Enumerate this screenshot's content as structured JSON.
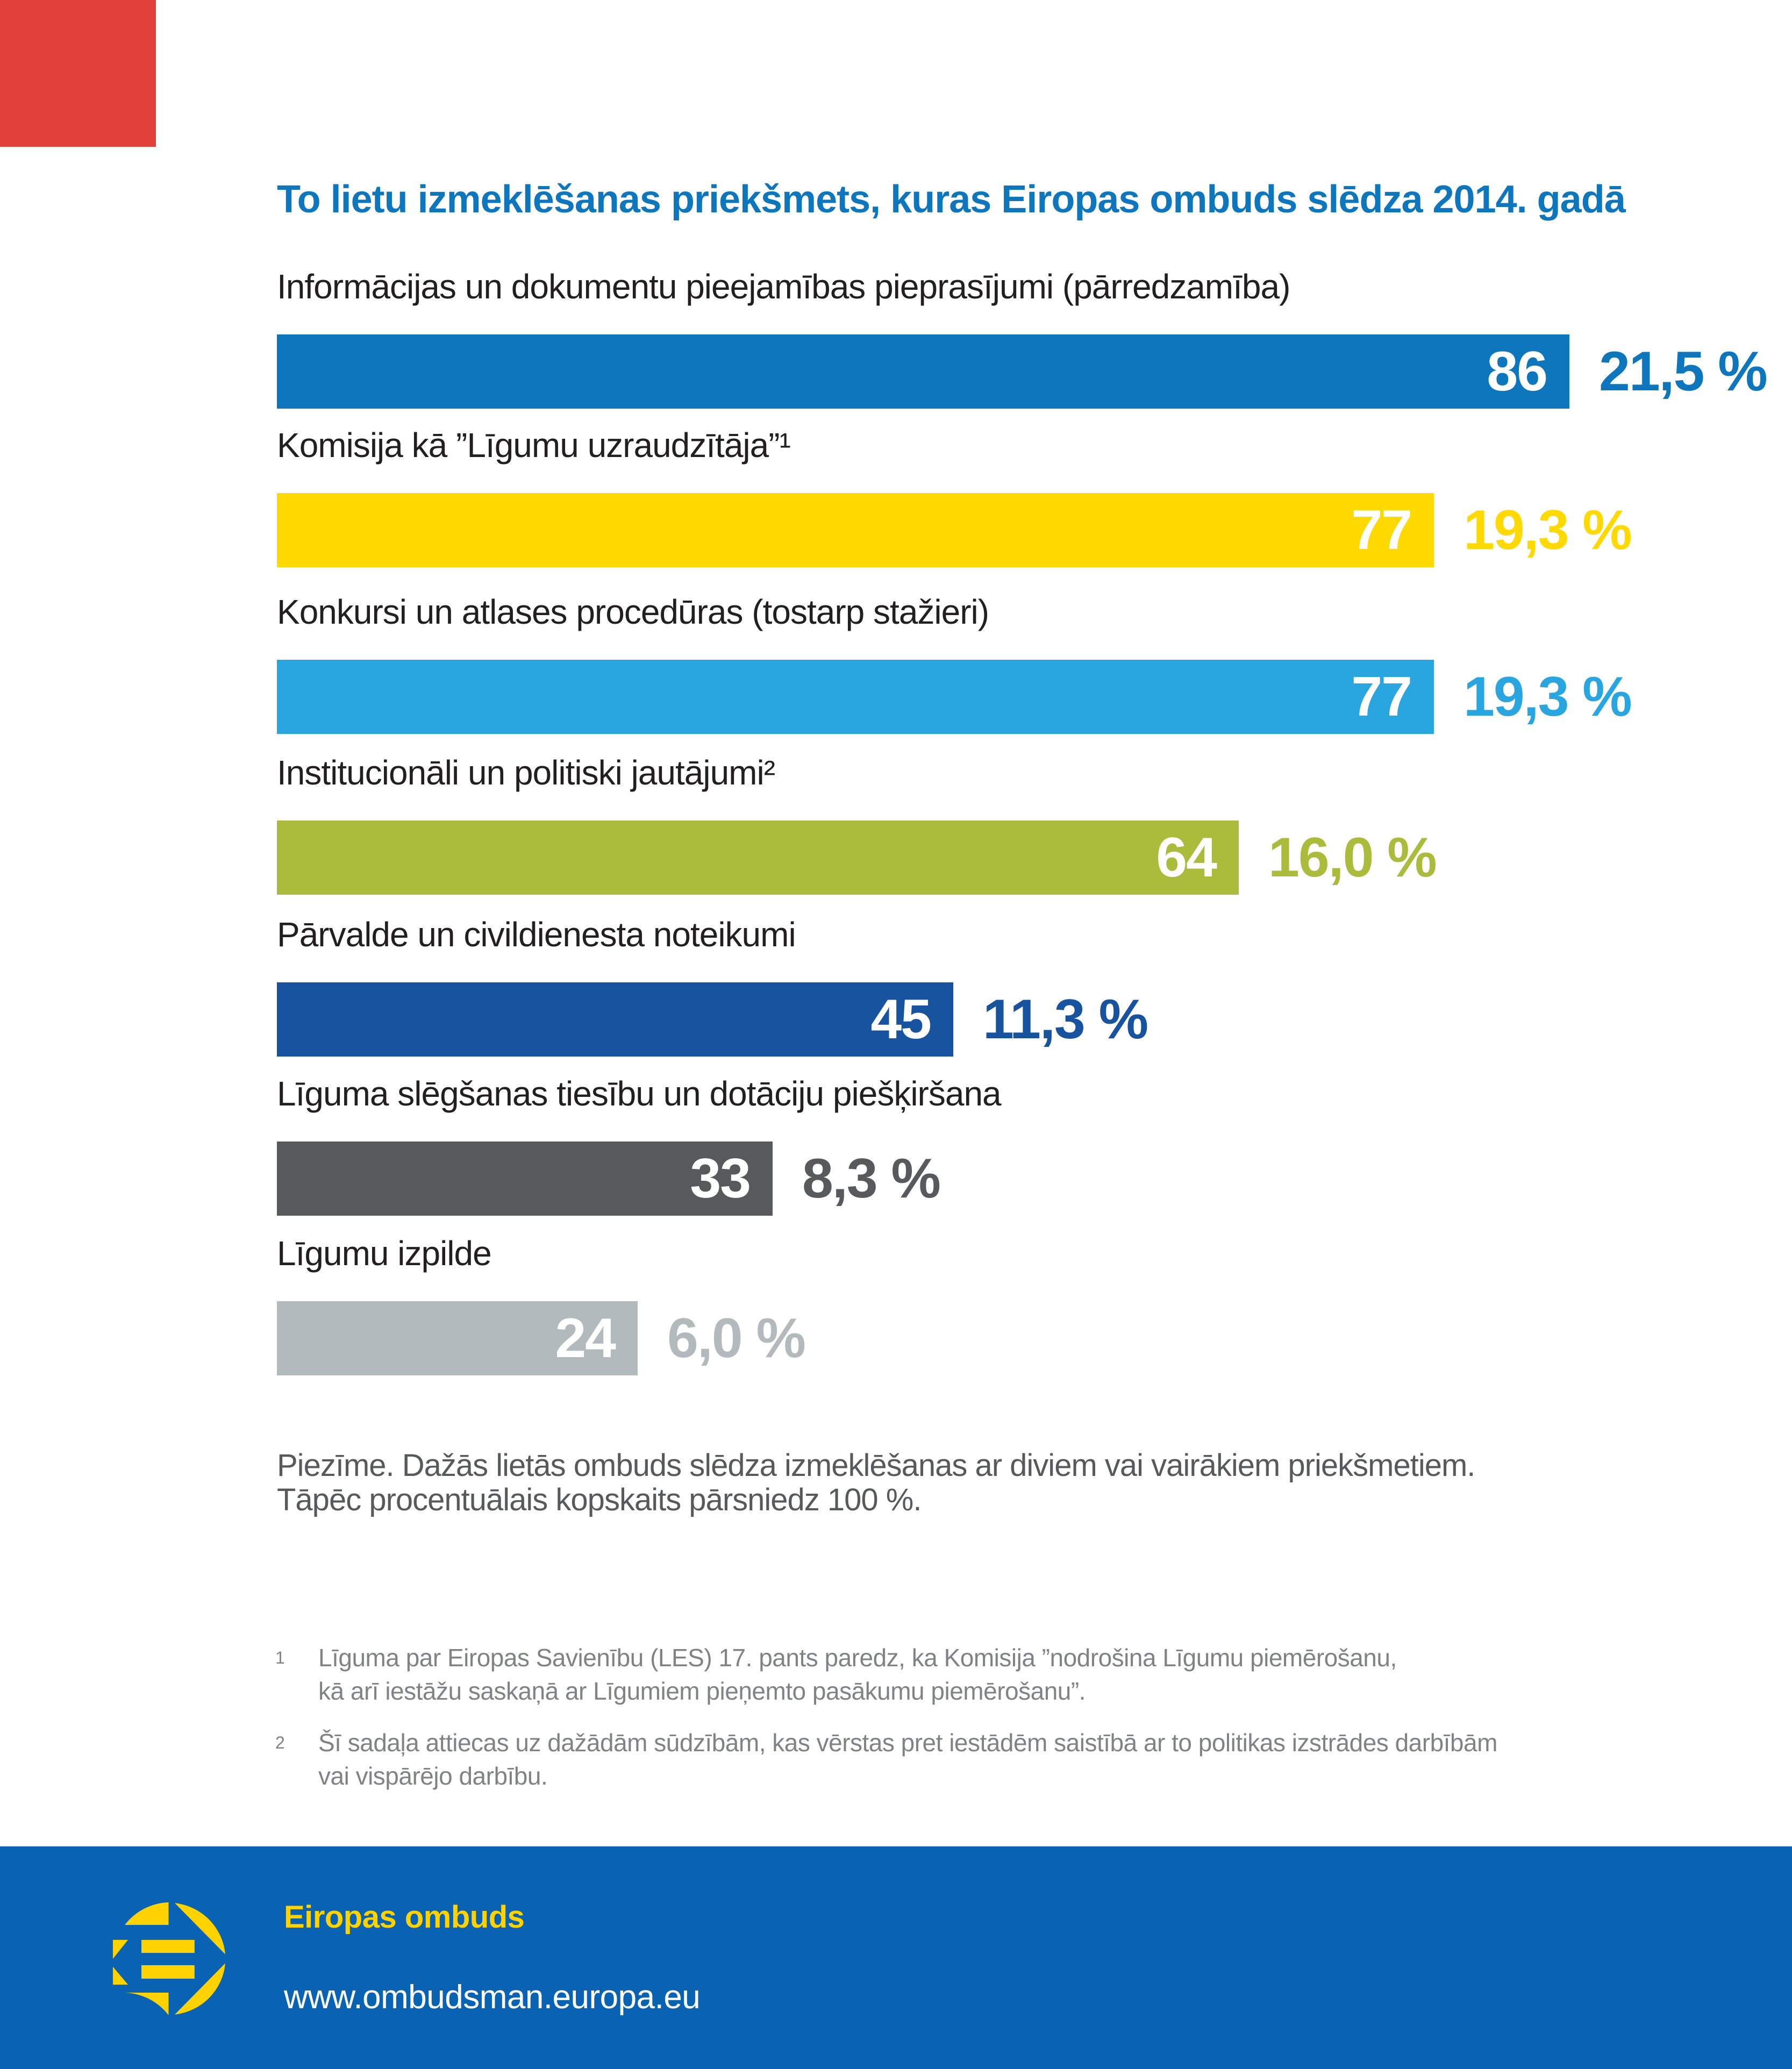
{
  "page": {
    "background": "#ffffff",
    "corner_tab_color": "#e2403b"
  },
  "chart_data": {
    "type": "bar",
    "orientation": "horizontal",
    "title": "To lietu izmeklēšanas priekšmets, kuras Eiropas ombuds slēdza 2014. gadā",
    "title_color": "#0e76bc",
    "categories": [
      "Informācijas un dokumentu pieejamības pieprasījumi (pārredzamība)",
      "Komisija kā ”Līgumu uzraudzītāja”¹",
      "Konkursi un atlases procedūras (tostarp stažieri)",
      "Institucionāli un politiski jautājumi²",
      "Pārvalde un civildienesta noteikumi",
      "Līguma slēgšanas tiesību un dotāciju piešķiršana",
      "Līgumu izpilde"
    ],
    "values": [
      86,
      77,
      77,
      64,
      45,
      33,
      24
    ],
    "value_labels": [
      "86",
      "77",
      "77",
      "64",
      "45",
      "33",
      "24"
    ],
    "percent_labels": [
      "21,5 %",
      "19,3 %",
      "19,3 %",
      "16,0 %",
      "11,3 %",
      "8,3 %",
      "6,0 %"
    ],
    "bar_colors": [
      "#0e76bc",
      "#ffd900",
      "#29a6df",
      "#a9bc3c",
      "#17539e",
      "#58595b",
      "#b3babd"
    ],
    "percent_colors": [
      "#0e76bc",
      "#ffd900",
      "#29a6df",
      "#a9bc3c",
      "#17539e",
      "#58595b",
      "#b3babd"
    ],
    "value_text_color": "#ffffff",
    "xlim": [
      0,
      86
    ],
    "grid": false,
    "legend": false
  },
  "note": {
    "line1": "Piezīme. Dažās lietās ombuds slēdza izmeklēšanas ar diviem vai vairākiem priekšmetiem.",
    "line2": "Tāpēc procentuālais kopskaits pārsniedz 100 %."
  },
  "footnotes": [
    {
      "marker": "1",
      "line1": "Līguma par Eiropas Savienību (LES) 17. pants paredz, ka Komisija ”nodrošina Līgumu piemērošanu,",
      "line2": "kā arī iestāžu saskaņā ar Līgumiem pieņemto pasākumu piemērošanu”."
    },
    {
      "marker": "2",
      "line1": "Šī sadaļa attiecas uz dažādām sūdzībām, kas vērstas pret iestādēm saistībā ar to politikas izstrādes darbībām",
      "line2": "vai vispārējo darbību."
    }
  ],
  "footer": {
    "background": "#0a63b2",
    "org_name": "Eiropas ombuds",
    "org_name_color": "#ffd200",
    "url": "www.ombudsman.europa.eu",
    "url_color": "#ffffff",
    "logo_color": "#ffd200",
    "logo_name": "european-ombudsman-logo"
  }
}
